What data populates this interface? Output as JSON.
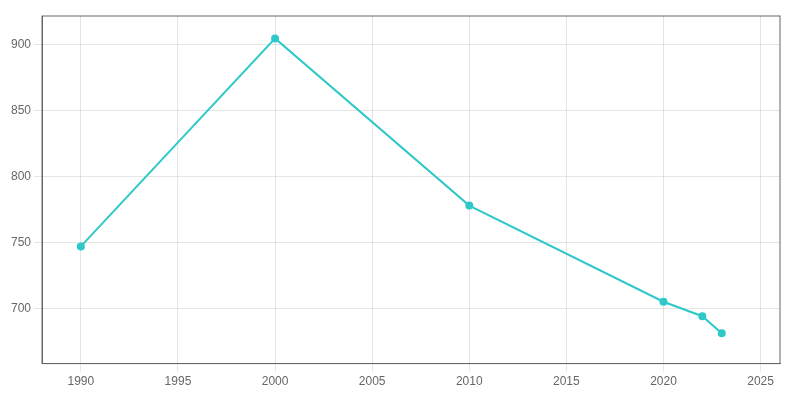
{
  "chart_data": {
    "type": "line",
    "x": [
      1990,
      2000,
      2010,
      2020,
      2022,
      2023
    ],
    "values": [
      747,
      905,
      778,
      705,
      694,
      681
    ],
    "color": "#2ec8c8",
    "marker": "circle",
    "xlim": [
      1988,
      2026
    ],
    "ylim": [
      658,
      922
    ],
    "xticks": [
      1990,
      1995,
      2000,
      2005,
      2010,
      2015,
      2020,
      2025
    ],
    "yticks": [
      700,
      750,
      800,
      850,
      900
    ],
    "grid": true
  }
}
